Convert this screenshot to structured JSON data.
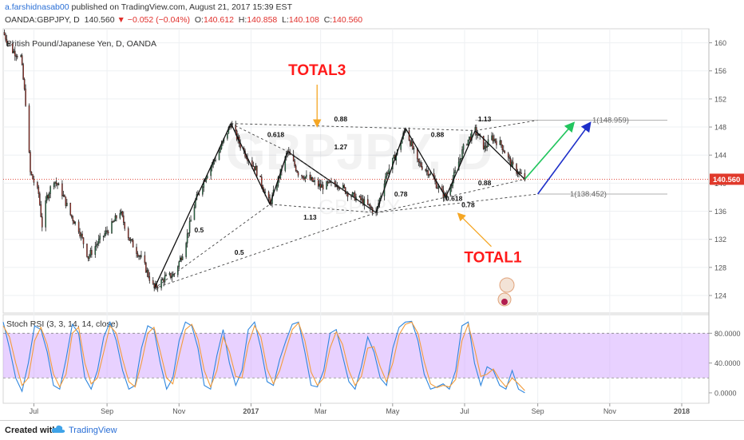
{
  "header": {
    "author": "a.farshidnasab00",
    "published_text": " published on TradingView.com, August 21, 2017 15:39 EST",
    "symbol": "OANDA:GBPJPY, D",
    "last": "140.560",
    "change": "▼ −0.052 (−0.04%)",
    "o_label": "O:",
    "o_value": "140.612",
    "h_label": "H:",
    "h_value": "140.858",
    "l_label": "L:",
    "l_value": "140.108",
    "c_label": "C:",
    "c_value": "140.560"
  },
  "chart_data": [
    {
      "type": "candlestick",
      "title": "British Pound/Japanese Yen, D, OANDA",
      "watermark": [
        "GBPJPY, D",
        "GBPJPY"
      ],
      "y_axis": {
        "ticks": [
          124,
          128,
          132,
          136,
          140,
          144,
          148,
          152,
          156,
          160
        ],
        "range": [
          121.5,
          162
        ]
      },
      "x_axis": {
        "ticks": [
          "Jul",
          "Sep",
          "Nov",
          "2017",
          "Mar",
          "May",
          "Jul",
          "Sep",
          "Nov",
          "2018"
        ]
      },
      "last_price_label": "140.560",
      "price_path": [
        [
          "2016-06-05",
          161.5
        ],
        [
          "2016-06-12",
          159.0
        ],
        [
          "2016-06-20",
          158.0
        ],
        [
          "2016-06-24",
          151.5
        ],
        [
          "2016-06-28",
          141.5
        ],
        [
          "2016-07-05",
          138.5
        ],
        [
          "2016-07-08",
          134.0
        ],
        [
          "2016-07-12",
          138.0
        ],
        [
          "2016-07-18",
          140.5
        ],
        [
          "2016-07-24",
          139.0
        ],
        [
          "2016-08-01",
          135.5
        ],
        [
          "2016-08-08",
          133.5
        ],
        [
          "2016-08-16",
          129.5
        ],
        [
          "2016-08-24",
          131.5
        ],
        [
          "2016-09-05",
          134.0
        ],
        [
          "2016-09-12",
          136.0
        ],
        [
          "2016-09-20",
          132.0
        ],
        [
          "2016-10-01",
          129.0
        ],
        [
          "2016-10-07",
          126.5
        ],
        [
          "2016-10-11",
          125.0
        ],
        [
          "2016-10-20",
          126.5
        ],
        [
          "2016-10-28",
          127.0
        ],
        [
          "2016-11-05",
          130.5
        ],
        [
          "2016-11-15",
          137.5
        ],
        [
          "2016-11-25",
          141.5
        ],
        [
          "2016-12-05",
          144.5
        ],
        [
          "2016-12-15",
          148.5
        ],
        [
          "2016-12-24",
          145.0
        ],
        [
          "2017-01-05",
          142.0
        ],
        [
          "2017-01-17",
          137.0
        ],
        [
          "2017-01-24",
          140.5
        ],
        [
          "2017-02-01",
          144.5
        ],
        [
          "2017-02-10",
          141.5
        ],
        [
          "2017-02-20",
          140.5
        ],
        [
          "2017-03-01",
          139.5
        ],
        [
          "2017-03-15",
          140.0
        ],
        [
          "2017-03-25",
          138.5
        ],
        [
          "2017-04-05",
          137.5
        ],
        [
          "2017-04-17",
          135.8
        ],
        [
          "2017-04-25",
          141.0
        ],
        [
          "2017-05-05",
          144.5
        ],
        [
          "2017-05-12",
          147.8
        ],
        [
          "2017-05-22",
          143.0
        ],
        [
          "2017-06-01",
          141.5
        ],
        [
          "2017-06-10",
          139.0
        ],
        [
          "2017-06-15",
          138.0
        ],
        [
          "2017-06-23",
          141.5
        ],
        [
          "2017-07-01",
          145.5
        ],
        [
          "2017-07-10",
          147.5
        ],
        [
          "2017-07-18",
          145.0
        ],
        [
          "2017-07-24",
          146.5
        ],
        [
          "2017-08-01",
          145.5
        ],
        [
          "2017-08-10",
          142.5
        ],
        [
          "2017-08-21",
          140.56
        ]
      ],
      "pattern_lines": [
        {
          "name": "solid",
          "points": [
            [
              "2016-10-11",
              125.0
            ],
            [
              "2016-12-15",
              148.5
            ],
            [
              "2017-01-17",
              137.0
            ],
            [
              "2017-02-01",
              144.5
            ],
            [
              "2017-04-17",
              135.8
            ],
            [
              "2017-05-12",
              147.8
            ],
            [
              "2017-06-15",
              138.0
            ],
            [
              "2017-07-10",
              147.5
            ],
            [
              "2017-08-21",
              140.56
            ]
          ]
        },
        {
          "name": "dashed-upper",
          "points": [
            [
              "2016-12-15",
              148.5
            ],
            [
              "2017-05-12",
              147.8
            ],
            [
              "2017-07-10",
              147.5
            ],
            [
              "2017-09-01",
              148.959
            ]
          ]
        },
        {
          "name": "dashed-lower-1",
          "points": [
            [
              "2016-10-11",
              125.0
            ],
            [
              "2017-04-17",
              135.8
            ],
            [
              "2017-09-01",
              138.452
            ]
          ]
        },
        {
          "name": "dashed-lower-2",
          "points": [
            [
              "2017-01-17",
              137.0
            ],
            [
              "2017-04-17",
              135.8
            ],
            [
              "2017-06-15",
              138.0
            ],
            [
              "2017-08-21",
              140.56
            ]
          ]
        },
        {
          "name": "dashed-diag-1",
          "points": [
            [
              "2016-10-11",
              125.0
            ],
            [
              "2017-01-17",
              137.0
            ]
          ]
        },
        {
          "name": "dashed-diag-2",
          "points": [
            [
              "2016-12-15",
              148.5
            ],
            [
              "2017-02-01",
              144.5
            ],
            [
              "2017-04-17",
              135.8
            ]
          ]
        }
      ],
      "ratio_labels": [
        {
          "text": "0.618",
          "x": "2017-01-22",
          "y": 146.6
        },
        {
          "text": "0.88",
          "x": "2017-03-18",
          "y": 148.8
        },
        {
          "text": "1.27",
          "x": "2017-03-18",
          "y": 144.8
        },
        {
          "text": "0.5",
          "x": "2016-11-18",
          "y": 133.0
        },
        {
          "text": "1.13",
          "x": "2017-02-20",
          "y": 134.8
        },
        {
          "text": "0.5",
          "x": "2016-12-22",
          "y": 129.8
        },
        {
          "text": "0.88",
          "x": "2017-06-08",
          "y": 146.6
        },
        {
          "text": "1.13",
          "x": "2017-07-18",
          "y": 148.8
        },
        {
          "text": "0.88",
          "x": "2017-07-18",
          "y": 139.7
        },
        {
          "text": "0.78",
          "x": "2017-05-08",
          "y": 138.1
        },
        {
          "text": "0.618",
          "x": "2017-06-22",
          "y": 137.5
        },
        {
          "text": "0.78",
          "x": "2017-07-04",
          "y": 136.6
        }
      ],
      "level_labels": [
        {
          "text": "1(148.959)",
          "value": 148.959
        },
        {
          "text": "1(138.452)",
          "value": 138.452
        }
      ],
      "projection_arrows": [
        {
          "color": "#22c55e",
          "from": [
            "2017-08-21",
            140.56
          ],
          "to": [
            "2017-10-01",
            148.5
          ]
        },
        {
          "color": "#1d2fc9",
          "from": [
            "2017-09-01",
            138.452
          ],
          "to": [
            "2017-10-15",
            148.5
          ]
        }
      ],
      "annotations": [
        {
          "text": "TOTAL3",
          "color": "#ff1a1a",
          "x": "2017-02-26",
          "y": 155.4,
          "arrow_to": [
            "2017-02-26",
            148.2
          ]
        },
        {
          "text": "TOTAL1",
          "color": "#ff1a1a",
          "x": "2017-07-25",
          "y": 128.7,
          "arrow_to": [
            "2017-06-26",
            135.6
          ]
        }
      ]
    },
    {
      "type": "line",
      "title": "Stoch RSI (3, 3, 14, 14, close)",
      "y_axis": {
        "ticks": [
          "80.0000",
          "40.0000",
          "0.0000"
        ],
        "tick_values": [
          80,
          40,
          0
        ],
        "range": [
          -14,
          105
        ]
      },
      "band": {
        "from": 20,
        "to": 80,
        "color": "#cc99ff"
      },
      "series": [
        {
          "color": "#2e86de",
          "values": [
            95,
            60,
            20,
            2,
            40,
            90,
            85,
            55,
            10,
            5,
            45,
            92,
            80,
            20,
            5,
            30,
            75,
            95,
            70,
            30,
            5,
            10,
            60,
            90,
            85,
            40,
            5,
            20,
            70,
            95,
            90,
            60,
            10,
            5,
            50,
            85,
            40,
            10,
            30,
            85,
            95,
            60,
            15,
            10,
            45,
            70,
            92,
            95,
            55,
            10,
            8,
            30,
            80,
            85,
            50,
            15,
            5,
            35,
            75,
            55,
            20,
            10,
            60,
            88,
            95,
            96,
            70,
            25,
            5,
            8,
            12,
            5,
            30,
            90,
            95,
            40,
            10,
            35,
            30,
            10,
            5,
            30,
            5,
            0
          ]
        },
        {
          "color": "#f39c3c",
          "values": [
            90,
            75,
            40,
            10,
            20,
            70,
            88,
            65,
            25,
            8,
            25,
            80,
            88,
            40,
            12,
            20,
            55,
            90,
            80,
            45,
            15,
            8,
            40,
            80,
            88,
            55,
            20,
            12,
            50,
            85,
            92,
            72,
            30,
            8,
            30,
            75,
            55,
            22,
            20,
            65,
            90,
            75,
            32,
            12,
            30,
            58,
            85,
            94,
            70,
            28,
            10,
            20,
            60,
            82,
            65,
            30,
            10,
            22,
            60,
            62,
            35,
            15,
            40,
            78,
            92,
            95,
            80,
            42,
            12,
            7,
            10,
            8,
            18,
            70,
            92,
            60,
            22,
            25,
            32,
            18,
            8,
            20,
            12,
            3
          ]
        }
      ]
    }
  ],
  "footer": {
    "created_with": "Created with",
    "brand": "TradingView"
  }
}
